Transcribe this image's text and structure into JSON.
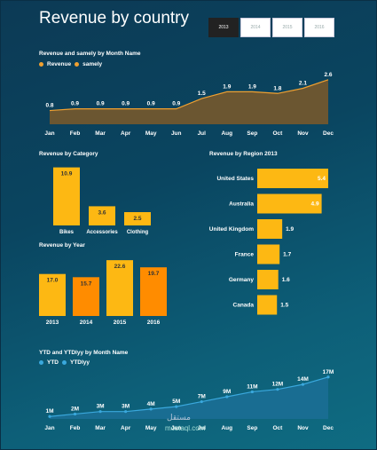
{
  "page": {
    "title": "Revenue by country"
  },
  "year_buttons": [
    "2013",
    "2014",
    "2015",
    "2016"
  ],
  "active_year": "2013",
  "colors": {
    "bar": "#FDB813",
    "orange": "#FF8C00",
    "area": "#6e5a3a",
    "line": "#f0a030",
    "ytd": "#1d7fa8"
  },
  "chart_data": [
    {
      "type": "area",
      "title": "Revenue and samely by Month Name",
      "legend": [
        "Revenue",
        "samely"
      ],
      "categories": [
        "Jan",
        "Feb",
        "Mar",
        "Apr",
        "May",
        "Jun",
        "Jul",
        "Aug",
        "Sep",
        "Oct",
        "Nov",
        "Dec"
      ],
      "values": [
        0.8,
        0.9,
        0.9,
        0.9,
        0.9,
        0.9,
        1.5,
        1.9,
        1.9,
        1.8,
        2.1,
        2.6
      ],
      "labels": [
        "0.8",
        "0.9",
        "0.9",
        "0.9",
        "0.9",
        "0.9",
        "1.5",
        "1.9",
        "1.9",
        "1.8",
        "2.1",
        "2.6"
      ]
    },
    {
      "type": "bar",
      "title": "Revenue by Category",
      "categories": [
        "Bikes",
        "Accessories",
        "Clothing"
      ],
      "values": [
        10.9,
        3.6,
        2.5
      ]
    },
    {
      "type": "bar",
      "title": "Revenue by Year",
      "categories": [
        "2013",
        "2014",
        "2015",
        "2016"
      ],
      "values": [
        17.0,
        15.7,
        22.6,
        19.7
      ],
      "labels": [
        "17.0",
        "15.7",
        "22.6",
        "19.7"
      ]
    },
    {
      "type": "bar",
      "orientation": "horizontal",
      "title": "Revenue by Region 2013",
      "categories": [
        "United States",
        "Australia",
        "United Kingdom",
        "France",
        "Germany",
        "Canada"
      ],
      "values": [
        5.4,
        4.9,
        1.9,
        1.7,
        1.6,
        1.5
      ]
    },
    {
      "type": "area",
      "title": "YTD and YTDlyy by Month Name",
      "legend": [
        "YTD",
        "YTDlyy"
      ],
      "categories": [
        "Jan",
        "Feb",
        "Mar",
        "Apr",
        "May",
        "Jun",
        "Jul",
        "Aug",
        "Sep",
        "Oct",
        "Nov",
        "Dec"
      ],
      "values": [
        1,
        2,
        3,
        3,
        4,
        5,
        7,
        9,
        11,
        12,
        14,
        17
      ],
      "labels": [
        "1M",
        "2M",
        "3M",
        "3M",
        "4M",
        "5M",
        "7M",
        "9M",
        "11M",
        "12M",
        "14M",
        "17M"
      ]
    }
  ],
  "watermark": {
    "arabic": "مستقل",
    "latin": "mostaql.com"
  }
}
